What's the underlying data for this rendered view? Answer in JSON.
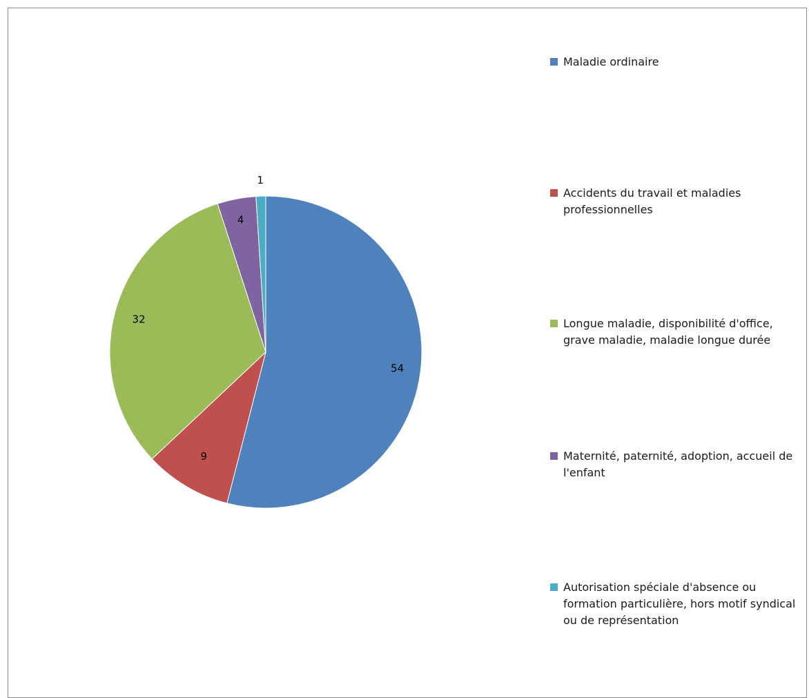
{
  "chart_data": {
    "type": "pie",
    "title": "",
    "categories": [
      "Maladie ordinaire",
      "Accidents du travail et maladies professionnelles",
      "Longue maladie, disponibilité d'office, grave maladie, maladie longue durée",
      "Maternité, paternité, adoption, accueil de l'enfant",
      "Autorisation spéciale d'absence ou formation particulière, hors motif syndical ou de représentation"
    ],
    "values": [
      54,
      9,
      32,
      4,
      1
    ],
    "data_labels": [
      "54",
      "9",
      "32",
      "4",
      "1"
    ],
    "colors": [
      "#4f81bd",
      "#c0504d",
      "#9bbb59",
      "#8064a2",
      "#4bacc6"
    ],
    "legend_position": "right",
    "start_angle": "12 o'clock",
    "direction": "clockwise"
  }
}
